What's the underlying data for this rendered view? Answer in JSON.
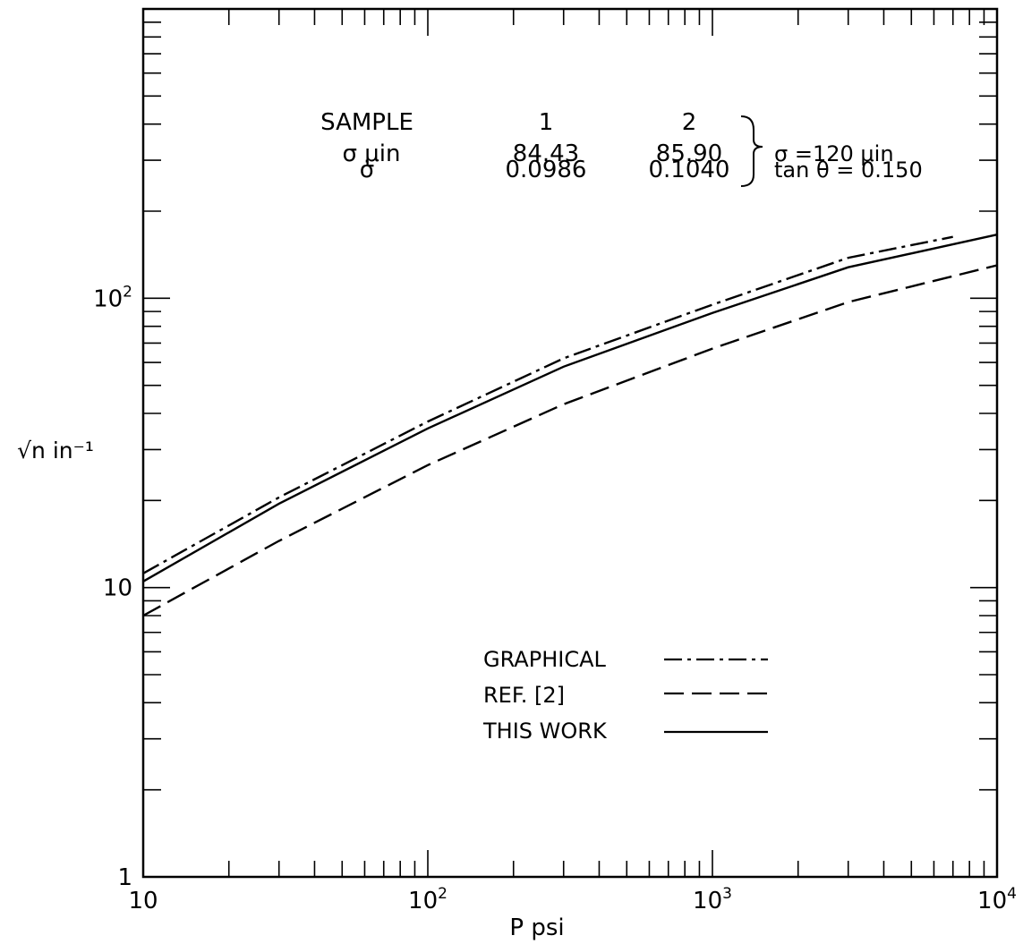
{
  "chart_data": {
    "type": "line",
    "xscale": "log",
    "yscale": "log",
    "xlim": [
      10,
      10000
    ],
    "ylim": [
      1,
      1000
    ],
    "grid": false,
    "xlabel": "P psi",
    "ylabel": "√n in⁻¹",
    "x_tick_labels": [
      {
        "value": 10,
        "base": "10",
        "exp": ""
      },
      {
        "value": 100,
        "base": "10",
        "exp": "2"
      },
      {
        "value": 1000,
        "base": "10",
        "exp": "3"
      },
      {
        "value": 10000,
        "base": "10",
        "exp": "4"
      }
    ],
    "y_tick_labels": [
      {
        "value": 1,
        "base": "1",
        "exp": ""
      },
      {
        "value": 10,
        "base": "10",
        "exp": ""
      },
      {
        "value": 100,
        "base": "10",
        "exp": "2"
      }
    ],
    "series": [
      {
        "name": "GRAPHICAL",
        "dash": "dash-dot",
        "x": [
          10,
          30,
          100,
          300,
          1000,
          3000,
          7000
        ],
        "y": [
          11.2,
          20.5,
          37.5,
          62.0,
          95.0,
          138.0,
          163.0
        ]
      },
      {
        "name": "REF. [2]",
        "dash": "dashed",
        "x": [
          10,
          30,
          100,
          300,
          1000,
          3000,
          10000
        ],
        "y": [
          8.0,
          14.5,
          26.5,
          43.0,
          67.0,
          97.0,
          130.0
        ]
      },
      {
        "name": "THIS WORK",
        "dash": "solid",
        "x": [
          10,
          30,
          100,
          300,
          1000,
          3000,
          10000
        ],
        "y": [
          10.5,
          19.5,
          35.5,
          58.0,
          89.0,
          128.0,
          166.0
        ]
      }
    ],
    "legend_position": "lower-middle",
    "table": {
      "header": [
        "SAMPLE",
        "1",
        "2"
      ],
      "rows": [
        {
          "label": "σ μin",
          "values": [
            "84.43",
            "85.90"
          ]
        },
        {
          "label": "σ̇",
          "values": [
            "0.0986",
            "0.1040"
          ]
        }
      ],
      "notes": [
        "σ =120 μin",
        "tan θ = 0.150"
      ]
    }
  }
}
